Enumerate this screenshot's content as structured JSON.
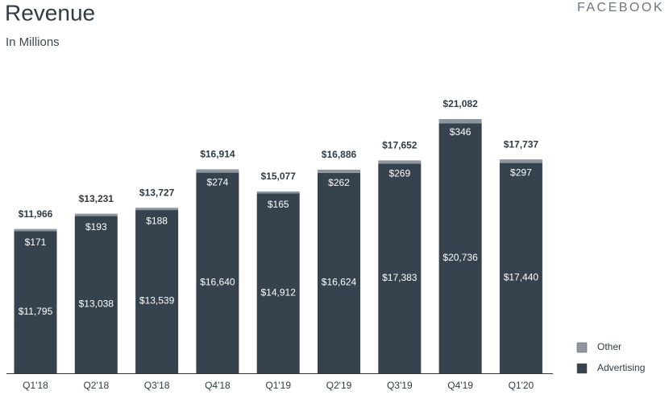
{
  "header": {
    "title": "Revenue",
    "subtitle": "In Millions",
    "brand": "FACEBOOK"
  },
  "chart_data": {
    "type": "bar",
    "stacked": true,
    "categories": [
      "Q1'18",
      "Q2'18",
      "Q3'18",
      "Q4'18",
      "Q1'19",
      "Q2'19",
      "Q3'19",
      "Q4'19",
      "Q1'20"
    ],
    "series": [
      {
        "name": "Advertising",
        "color": "#36434e",
        "values": [
          11795,
          13038,
          13539,
          16640,
          14912,
          16624,
          17383,
          20736,
          17440
        ],
        "value_labels": [
          "$11,795",
          "$13,038",
          "$13,539",
          "$16,640",
          "$14,912",
          "$16,624",
          "$17,383",
          "$20,736",
          "$17,440"
        ]
      },
      {
        "name": "Other",
        "color": "#8c969f",
        "values": [
          171,
          193,
          188,
          274,
          165,
          262,
          269,
          346,
          297
        ],
        "value_labels": [
          "$171",
          "$193",
          "$188",
          "$274",
          "$165",
          "$262",
          "$269",
          "$346",
          "$297"
        ]
      }
    ],
    "total_labels": [
      "$11,966",
      "$13,231",
      "$13,727",
      "$16,914",
      "$15,077",
      "$16,886",
      "$17,652",
      "$21,082",
      "$17,737"
    ]
  }
}
